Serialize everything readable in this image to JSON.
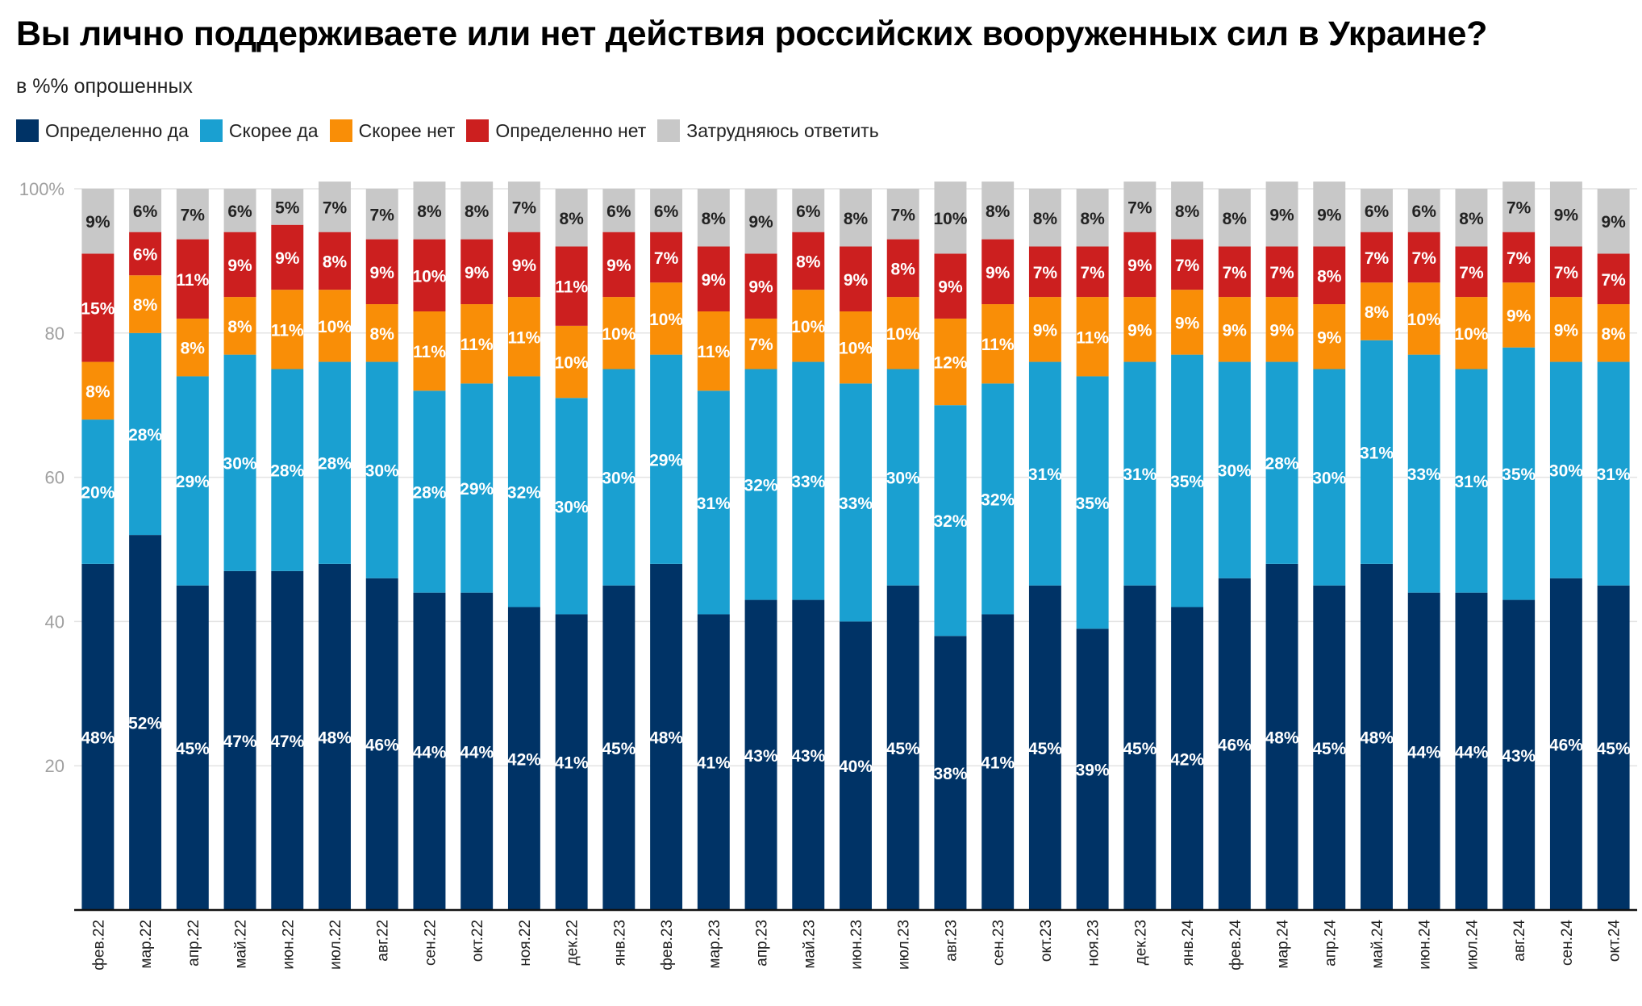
{
  "title": "Вы лично поддерживаете или нет действия российских вооруженных сил в Украине?",
  "subtitle": "в %% опрошенных",
  "chart_data": {
    "type": "bar",
    "stacked": true,
    "ylim": [
      0,
      100
    ],
    "yticks": [
      {
        "value": 20,
        "label": "20"
      },
      {
        "value": 40,
        "label": "40"
      },
      {
        "value": 60,
        "label": "60"
      },
      {
        "value": 80,
        "label": "80"
      },
      {
        "value": 100,
        "label": "100%"
      }
    ],
    "grid": true,
    "legend_position": "top-left",
    "categories": [
      "фев.22",
      "мар.22",
      "апр.22",
      "май.22",
      "июн.22",
      "июл.22",
      "авг.22",
      "сен.22",
      "окт.22",
      "ноя.22",
      "дек.22",
      "янв.23",
      "фев.23",
      "мар.23",
      "апр.23",
      "май.23",
      "июн.23",
      "июл.23",
      "авг.23",
      "сен.23",
      "окт.23",
      "ноя.23",
      "дек.23",
      "янв.24",
      "фев.24",
      "мар.24",
      "апр.24",
      "май.24",
      "июн.24",
      "июл.24",
      "авг.24",
      "сен.24",
      "окт.24"
    ],
    "series": [
      {
        "name": "Определенно да",
        "color": "#003366",
        "label_color": "#ffffff",
        "values": [
          48,
          52,
          45,
          47,
          47,
          48,
          46,
          44,
          44,
          42,
          41,
          45,
          48,
          41,
          43,
          43,
          40,
          45,
          38,
          41,
          45,
          39,
          45,
          42,
          46,
          48,
          45,
          48,
          44,
          44,
          43,
          46,
          45
        ]
      },
      {
        "name": "Скорее да",
        "color": "#1aa0d1",
        "label_color": "#ffffff",
        "values": [
          20,
          28,
          29,
          30,
          28,
          28,
          30,
          28,
          29,
          32,
          30,
          30,
          29,
          31,
          32,
          33,
          33,
          30,
          32,
          32,
          31,
          35,
          31,
          35,
          30,
          28,
          30,
          31,
          33,
          31,
          35,
          30,
          31
        ]
      },
      {
        "name": "Скорее нет",
        "color": "#f98e07",
        "label_color": "#ffffff",
        "values": [
          8,
          8,
          8,
          8,
          11,
          10,
          8,
          11,
          11,
          11,
          10,
          10,
          10,
          11,
          7,
          10,
          10,
          10,
          12,
          11,
          9,
          11,
          9,
          9,
          9,
          9,
          9,
          8,
          10,
          10,
          9,
          9,
          8
        ]
      },
      {
        "name": "Определенно нет",
        "color": "#cc1f1f",
        "label_color": "#ffffff",
        "values": [
          15,
          6,
          11,
          9,
          9,
          8,
          9,
          10,
          9,
          9,
          11,
          9,
          7,
          9,
          9,
          8,
          9,
          8,
          9,
          9,
          7,
          7,
          9,
          7,
          7,
          7,
          8,
          7,
          7,
          7,
          7,
          7,
          7
        ]
      },
      {
        "name": "Затрудняюсь ответить",
        "color": "#c8c8c8",
        "label_color": "#222222",
        "values": [
          9,
          6,
          7,
          6,
          5,
          7,
          7,
          8,
          8,
          7,
          8,
          6,
          6,
          8,
          9,
          6,
          8,
          7,
          10,
          8,
          8,
          8,
          7,
          8,
          8,
          9,
          9,
          6,
          6,
          8,
          7,
          9,
          9
        ]
      }
    ]
  }
}
